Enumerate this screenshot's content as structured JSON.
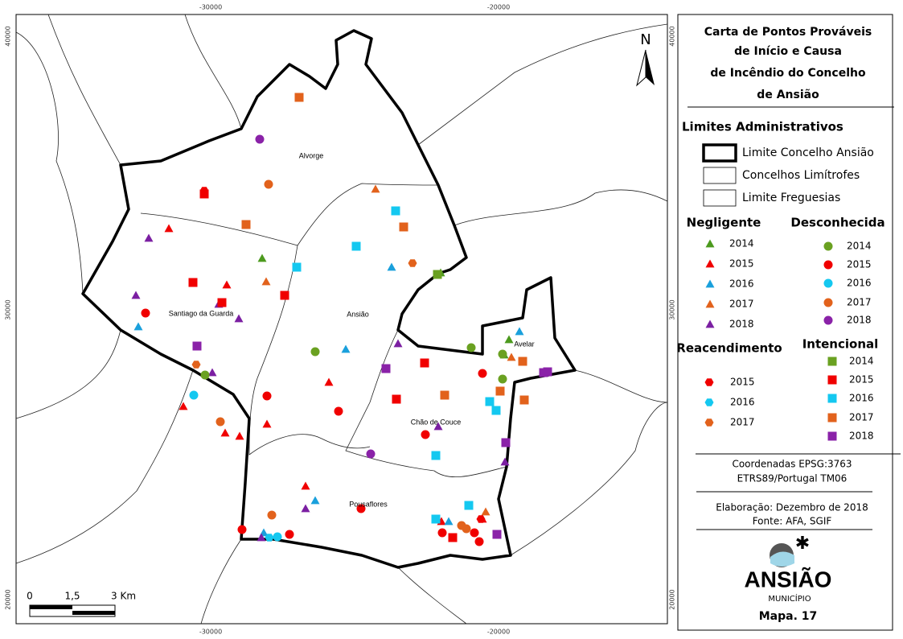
{
  "map": {
    "frame_labels": {
      "top": [
        "-30000",
        "-20000"
      ],
      "bottom": [
        "-30000",
        "-20000"
      ],
      "left": [
        "40000",
        "30000",
        "20000"
      ],
      "right": [
        "40000",
        "30000",
        "20000"
      ]
    },
    "places": [
      "Alvorge",
      "Santiago da Guarda",
      "Ansião",
      "Avelar",
      "Chão de Couce",
      "Pousaflores"
    ],
    "north": "N",
    "scale": [
      "0",
      "1,5",
      "3 Km"
    ]
  },
  "legend": {
    "title": [
      "Carta de Pontos Prováveis",
      "de Início e Causa",
      "de Incêndio do Concelho",
      "de Ansião"
    ],
    "limits": {
      "title": "Limites Administrativos",
      "items": [
        "Limite Concelho Ansião",
        "Concelhos Limítrofes",
        "Limite Freguesias"
      ]
    },
    "groups": [
      {
        "title": "Negligente",
        "shape": "triangle",
        "items": [
          {
            "label": "2014",
            "color": "#4c9a1e"
          },
          {
            "label": "2015",
            "color": "#f00000"
          },
          {
            "label": "2016",
            "color": "#1aa0dc"
          },
          {
            "label": "2017",
            "color": "#e2621c"
          },
          {
            "label": "2018",
            "color": "#7b1fa2"
          }
        ]
      },
      {
        "title": "Desconhecida",
        "shape": "circle",
        "items": [
          {
            "label": "2014",
            "color": "#6aa121"
          },
          {
            "label": "2015",
            "color": "#f00000"
          },
          {
            "label": "2016",
            "color": "#14c8f0"
          },
          {
            "label": "2017",
            "color": "#e2621c"
          },
          {
            "label": "2018",
            "color": "#8a22a8"
          }
        ]
      },
      {
        "title": "Reacendimento",
        "shape": "hexagon",
        "items": [
          {
            "label": "2015",
            "color": "#f00000"
          },
          {
            "label": "2016",
            "color": "#14c8f0"
          },
          {
            "label": "2017",
            "color": "#e2621c"
          }
        ]
      },
      {
        "title": "Intencional",
        "shape": "square",
        "items": [
          {
            "label": "2014",
            "color": "#6aa121"
          },
          {
            "label": "2015",
            "color": "#f00000"
          },
          {
            "label": "2016",
            "color": "#14c8f0"
          },
          {
            "label": "2017",
            "color": "#e2621c"
          },
          {
            "label": "2018",
            "color": "#8a22a8"
          }
        ]
      }
    ],
    "coords": [
      "Coordenadas EPSG:3763",
      "ETRS89/Portugal TM06"
    ],
    "credits": [
      "Elaboração: Dezembro de 2018",
      "Fonte: AFA, SGIF"
    ],
    "logo": [
      "ANSIÃO",
      "MUNICÍPIO"
    ],
    "map_number": "Mapa. 17"
  }
}
